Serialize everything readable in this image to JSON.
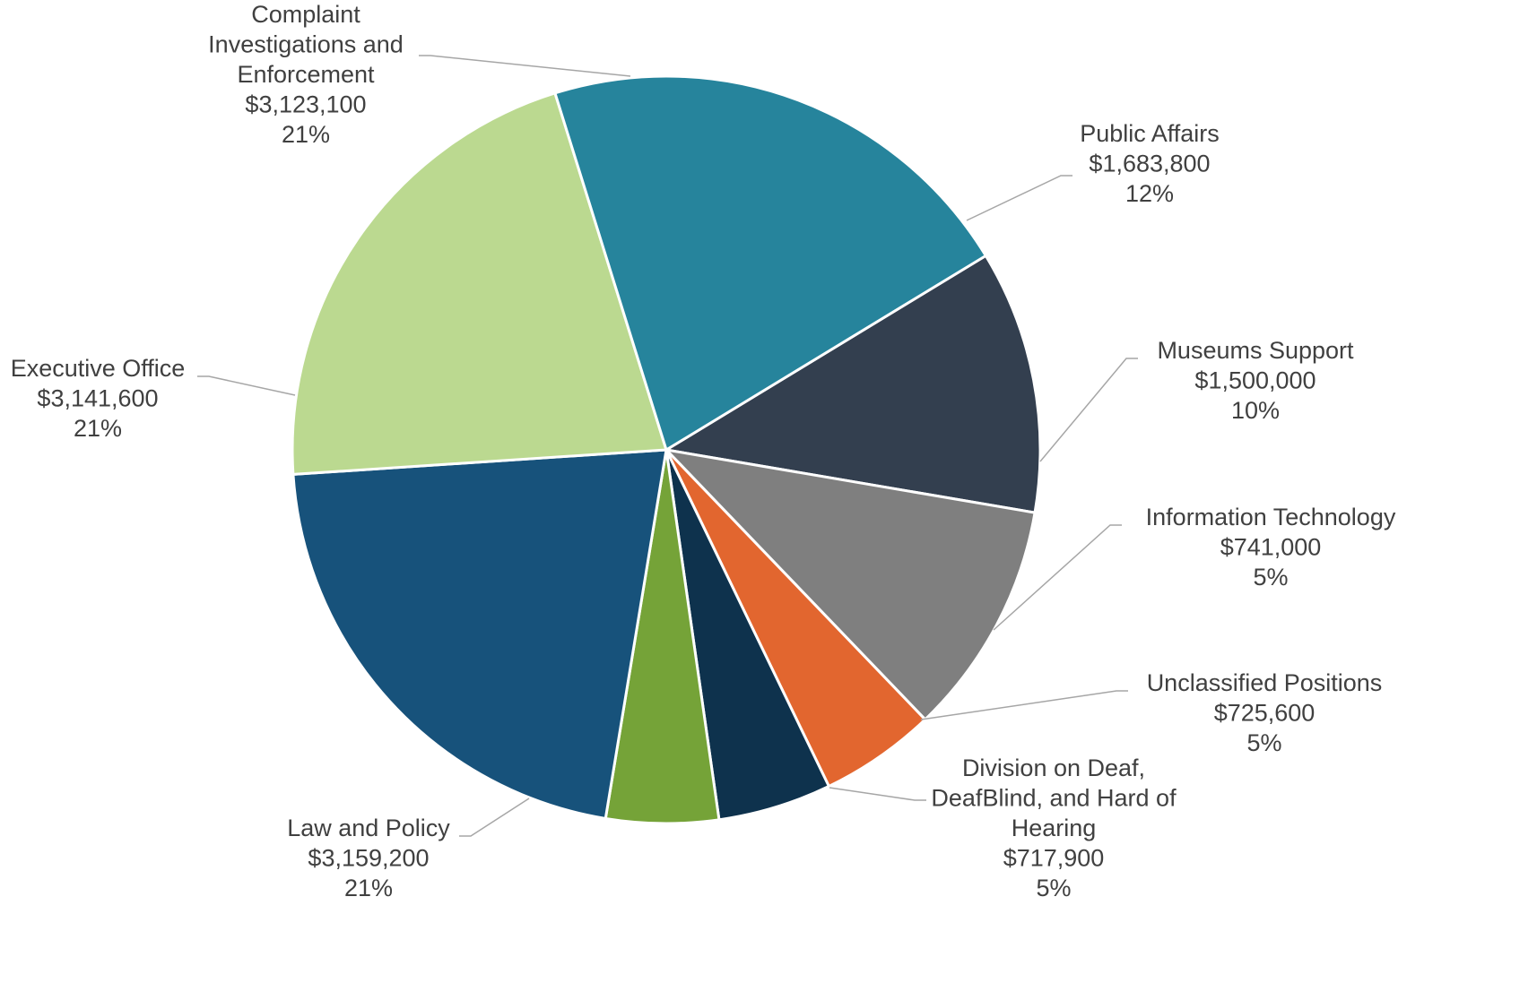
{
  "chart_data": {
    "type": "pie",
    "title": "",
    "start_angle_deg": 58.7,
    "direction": "clockwise",
    "slices": [
      {
        "label": "Public Affairs",
        "value": 1683800,
        "percent": "12%",
        "value_label": "$1,683,800",
        "color": "#333f4f"
      },
      {
        "label": "Museums Support",
        "value": 1500000,
        "percent": "10%",
        "value_label": "$1,500,000",
        "color": "#7f7f7f"
      },
      {
        "label": "Information Technology",
        "value": 741000,
        "percent": "5%",
        "value_label": "$741,000",
        "color": "#e2662f"
      },
      {
        "label": "Unclassified Positions",
        "value": 725600,
        "percent": "5%",
        "value_label": "$725,600",
        "color": "#0e324d"
      },
      {
        "label": "Division on Deaf, DeafBlind, and Hard of Hearing",
        "value": 717900,
        "percent": "5%",
        "value_label": "$717,900",
        "color": "#75a338"
      },
      {
        "label": "Law and Policy",
        "value": 3159200,
        "percent": "21%",
        "value_label": "$3,159,200",
        "color": "#17527b"
      },
      {
        "label": "Executive Office",
        "value": 3141600,
        "percent": "21%",
        "value_label": "$3,141,600",
        "color": "#bbd990"
      },
      {
        "label": "Complaint Investigations and Enforcement",
        "value": 3123100,
        "percent": "21%",
        "value_label": "$3,123,100",
        "color": "#26849c"
      }
    ]
  }
}
